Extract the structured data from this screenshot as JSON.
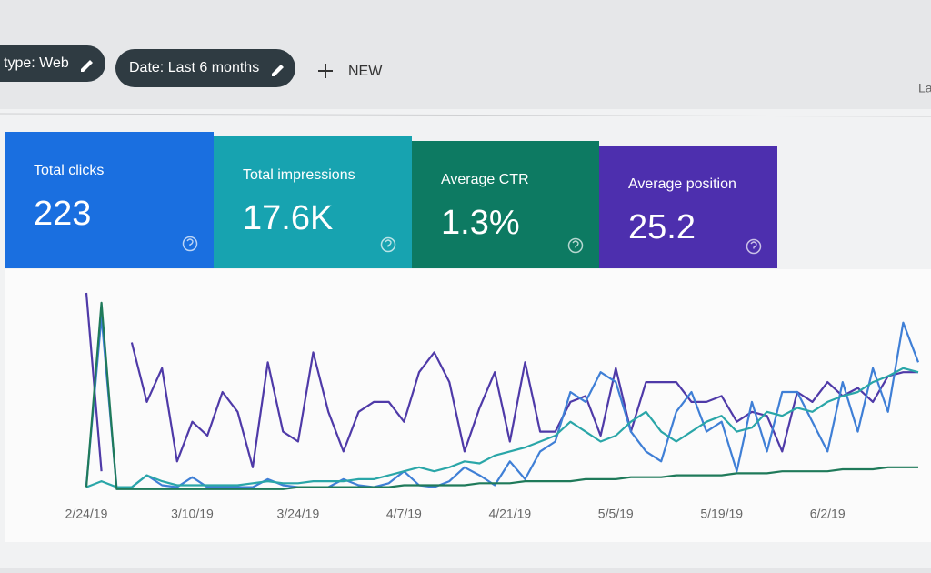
{
  "toolbar": {
    "filters": [
      "type: Web",
      "Date: Last 6 months"
    ],
    "new_button": "NEW",
    "right_text": "La"
  },
  "metrics": [
    {
      "label": "Total clicks",
      "value": "223",
      "color": "#1a6fe0"
    },
    {
      "label": "Total impressions",
      "value": "17.6K",
      "color": "#17a3b0"
    },
    {
      "label": "Average CTR",
      "value": "1.3%",
      "color": "#0d7a62"
    },
    {
      "label": "Average position",
      "value": "25.2",
      "color": "#4d2fae"
    }
  ],
  "chart_data": {
    "type": "line",
    "ylim": [
      0,
      100
    ],
    "categories": [
      "2/24/19",
      null,
      null,
      null,
      null,
      null,
      null,
      "3/10/19",
      null,
      null,
      null,
      null,
      null,
      null,
      "3/24/19",
      null,
      null,
      null,
      null,
      null,
      null,
      "4/7/19",
      null,
      null,
      null,
      null,
      null,
      null,
      "4/21/19",
      null,
      null,
      null,
      null,
      null,
      null,
      "5/5/19",
      null,
      null,
      null,
      null,
      null,
      null,
      "5/19/19",
      null,
      null,
      null,
      null,
      null,
      null,
      "6/2/19",
      null,
      null,
      null,
      null,
      null,
      null
    ],
    "series": [
      {
        "name": "Average position",
        "color": "#4f3aa8",
        "values": [
          100,
          10,
          null,
          75,
          45,
          62,
          15,
          35,
          28,
          50,
          40,
          12,
          65,
          30,
          25,
          70,
          40,
          20,
          40,
          45,
          45,
          35,
          60,
          70,
          55,
          20,
          42,
          60,
          25,
          65,
          30,
          30,
          45,
          48,
          28,
          62,
          30,
          55,
          55,
          55,
          45,
          45,
          48,
          35,
          40,
          38,
          20,
          50,
          45,
          55,
          48,
          52,
          45,
          58,
          60,
          60
        ]
      },
      {
        "name": "Total clicks",
        "color": "#3f7fd6",
        "values": [
          3,
          88,
          2,
          2,
          8,
          3,
          2,
          7,
          2,
          2,
          2,
          2,
          6,
          3,
          2,
          2,
          2,
          6,
          3,
          2,
          4,
          10,
          3,
          2,
          5,
          12,
          8,
          3,
          15,
          6,
          20,
          25,
          50,
          45,
          60,
          55,
          30,
          20,
          15,
          40,
          50,
          30,
          35,
          10,
          45,
          20,
          50,
          50,
          35,
          20,
          55,
          30,
          62,
          40,
          85,
          65
        ]
      },
      {
        "name": "Total impressions",
        "color": "#2aa6a8",
        "values": [
          2,
          5,
          2,
          2,
          8,
          5,
          3,
          3,
          3,
          3,
          3,
          4,
          5,
          4,
          4,
          5,
          5,
          5,
          6,
          6,
          8,
          10,
          12,
          10,
          12,
          15,
          14,
          18,
          20,
          22,
          25,
          28,
          35,
          30,
          25,
          28,
          35,
          40,
          30,
          25,
          30,
          35,
          38,
          30,
          32,
          40,
          38,
          42,
          40,
          45,
          48,
          50,
          55,
          58,
          62,
          60
        ]
      },
      {
        "name": "Average CTR",
        "color": "#1f7a5a",
        "values": [
          2,
          95,
          1,
          1,
          1,
          1,
          1,
          1,
          1,
          1,
          1,
          1,
          1,
          1,
          2,
          2,
          2,
          2,
          2,
          2,
          2,
          3,
          3,
          3,
          3,
          3,
          4,
          4,
          4,
          5,
          5,
          5,
          5,
          6,
          6,
          6,
          7,
          7,
          7,
          8,
          8,
          8,
          8,
          9,
          9,
          9,
          10,
          10,
          10,
          10,
          11,
          11,
          11,
          12,
          12,
          12
        ]
      }
    ]
  }
}
